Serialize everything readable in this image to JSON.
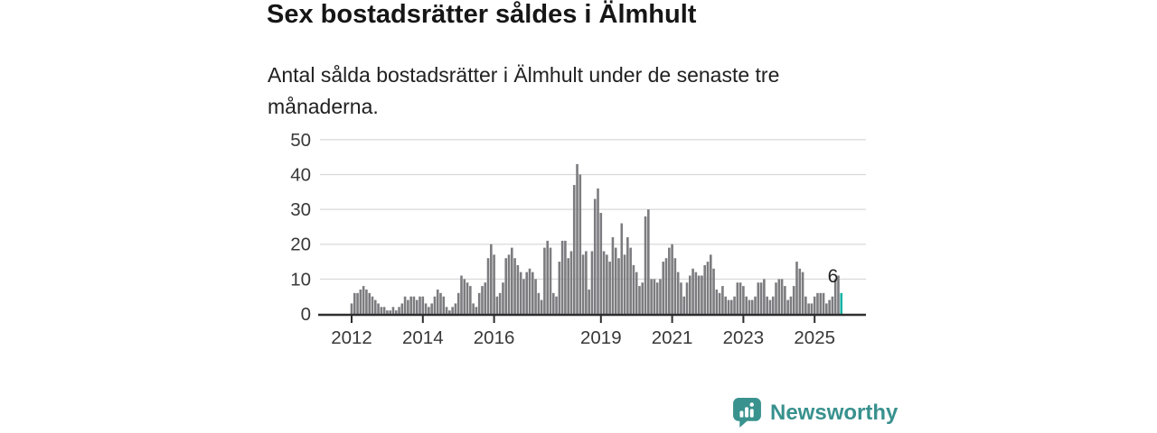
{
  "title": "Sex bostadsrätter såldes i Älmhult",
  "subtitle": "Antal sålda bostadsrätter i Älmhult under de senaste tre månaderna.",
  "chart_data": {
    "type": "bar",
    "x_start": "2012-01",
    "x_interval": "month",
    "title": "Sex bostadsrätter såldes i Älmhult",
    "ylabel": "",
    "xlabel": "",
    "ylim": [
      0,
      50
    ],
    "yticks": [
      0,
      10,
      20,
      30,
      40,
      50
    ],
    "xticks": [
      2012,
      2014,
      2016,
      2019,
      2021,
      2023,
      2025
    ],
    "grid": "horizontal",
    "legend": "none",
    "last_value_label": "6",
    "highlight_last": true,
    "values": [
      3,
      6,
      6,
      7,
      8,
      7,
      6,
      5,
      4,
      3,
      2,
      2,
      1,
      1,
      2,
      1,
      2,
      3,
      5,
      4,
      5,
      5,
      4,
      5,
      5,
      3,
      2,
      3,
      5,
      7,
      6,
      5,
      2,
      1,
      2,
      3,
      6,
      11,
      10,
      9,
      8,
      3,
      2,
      6,
      8,
      9,
      16,
      20,
      17,
      5,
      6,
      9,
      16,
      17,
      19,
      16,
      14,
      12,
      10,
      12,
      13,
      12,
      10,
      6,
      4,
      19,
      21,
      19,
      6,
      5,
      15,
      21,
      21,
      16,
      18,
      37,
      43,
      40,
      17,
      18,
      7,
      18,
      33,
      36,
      29,
      18,
      17,
      15,
      22,
      19,
      16,
      26,
      17,
      22,
      19,
      14,
      12,
      8,
      9,
      28,
      30,
      10,
      10,
      9,
      10,
      15,
      16,
      19,
      20,
      16,
      12,
      9,
      5,
      9,
      11,
      13,
      12,
      11,
      11,
      14,
      15,
      17,
      13,
      7,
      6,
      8,
      5,
      4,
      4,
      5,
      9,
      9,
      8,
      5,
      4,
      4,
      5,
      9,
      9,
      10,
      5,
      4,
      5,
      9,
      10,
      10,
      8,
      4,
      5,
      8,
      15,
      13,
      12,
      5,
      3,
      3,
      5,
      6,
      6,
      6,
      3,
      4,
      5,
      10,
      11,
      6
    ],
    "colors": {
      "bar": "#7c7c80",
      "highlight": "#16b3a4",
      "gridline": "#d9d9d9",
      "axis": "#2e2e2e",
      "tick_label": "#383838",
      "annotation": "#222222"
    }
  },
  "footer": {
    "brand": "Newsworthy",
    "brand_color": "#38918e"
  }
}
